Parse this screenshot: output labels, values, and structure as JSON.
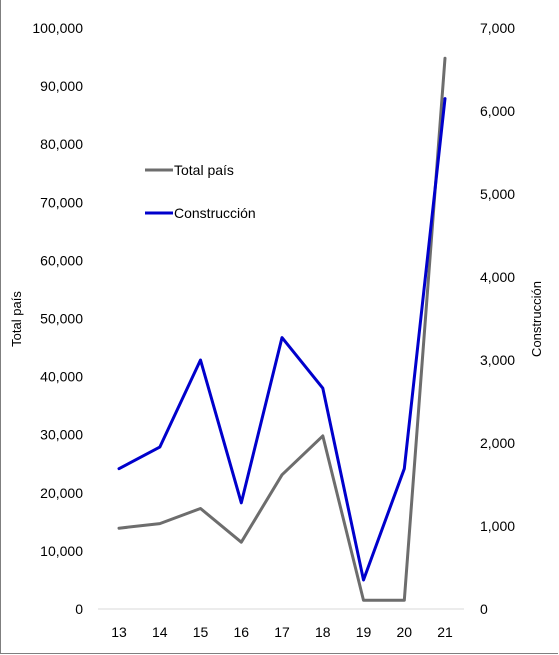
{
  "chart_data": {
    "type": "line",
    "categories": [
      "13",
      "14",
      "15",
      "16",
      "17",
      "18",
      "19",
      "20",
      "21"
    ],
    "series": [
      {
        "name": "Total país",
        "axis": "left",
        "color": "#6d6d6d",
        "values": [
          13900,
          14700,
          17300,
          11500,
          23100,
          29800,
          1500,
          1500,
          94800
        ]
      },
      {
        "name": "Construcción",
        "axis": "right",
        "color": "#0000cc",
        "values": [
          1690,
          1950,
          3000,
          1280,
          3270,
          2660,
          350,
          1690,
          6150
        ]
      }
    ],
    "ylabel": "Total país",
    "ylabel_right": "Construcción",
    "ylim": [
      0,
      100000
    ],
    "ylim_right": [
      0,
      7000
    ],
    "yticks": [
      "0",
      "10,000",
      "20,000",
      "30,000",
      "40,000",
      "50,000",
      "60,000",
      "70,000",
      "80,000",
      "90,000",
      "100,000"
    ],
    "yticks_right": [
      "0",
      "1,000",
      "2,000",
      "3,000",
      "4,000",
      "5,000",
      "6,000",
      "7,000"
    ],
    "grid": false,
    "legend": "upper-left"
  }
}
